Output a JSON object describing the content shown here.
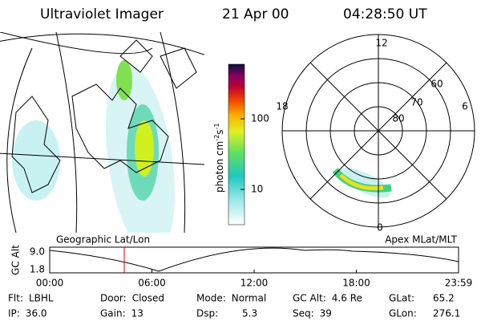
{
  "header": {
    "instrument": "Ultraviolet Imager",
    "date": "21 Apr 00",
    "time": "04:28:50 UT"
  },
  "colorbar": {
    "label": "photon cm",
    "exp1": "-2",
    "unit2": "s",
    "exp2": "-1",
    "ticks": [
      "100",
      "10"
    ]
  },
  "polar": {
    "mlt_labels": [
      "12",
      "18",
      "6",
      "0"
    ],
    "lat_labels": [
      "60",
      "70",
      "80"
    ]
  },
  "timeline": {
    "left_title": "Geographic Lat/Lon",
    "right_title": "Apex MLat/MLT",
    "axis_label": "GC Alt",
    "y_labels": [
      "9.0",
      "1.8"
    ],
    "time_labels": [
      "00:00",
      "06:00",
      "12:00",
      "18:00",
      "23:59"
    ]
  },
  "footer": {
    "rows": [
      [
        {
          "label": "Flt:",
          "value": "LBHL"
        },
        {
          "label": "Door:",
          "value": "Closed"
        },
        {
          "label": "Mode:",
          "value": "Normal"
        },
        {
          "label": "GC Alt:",
          "value": "4.6 Re"
        },
        {
          "label": "GLat:",
          "value": "65.2"
        }
      ],
      [
        {
          "label": "IP:",
          "value": "36.0"
        },
        {
          "label": "Gain:",
          "value": "13"
        },
        {
          "label": "Dsp:",
          "value": "5.3"
        },
        {
          "label": "Seq:",
          "value": "39"
        },
        {
          "label": "GLon:",
          "value": "276.1"
        }
      ]
    ]
  }
}
